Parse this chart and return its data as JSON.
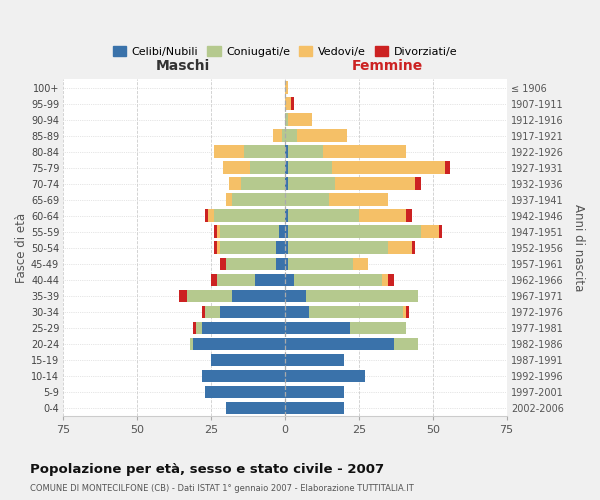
{
  "age_groups": [
    "0-4",
    "5-9",
    "10-14",
    "15-19",
    "20-24",
    "25-29",
    "30-34",
    "35-39",
    "40-44",
    "45-49",
    "50-54",
    "55-59",
    "60-64",
    "65-69",
    "70-74",
    "75-79",
    "80-84",
    "85-89",
    "90-94",
    "95-99",
    "100+"
  ],
  "birth_years": [
    "2002-2006",
    "1997-2001",
    "1992-1996",
    "1987-1991",
    "1982-1986",
    "1977-1981",
    "1972-1976",
    "1967-1971",
    "1962-1966",
    "1957-1961",
    "1952-1956",
    "1947-1951",
    "1942-1946",
    "1937-1941",
    "1932-1936",
    "1927-1931",
    "1922-1926",
    "1917-1921",
    "1912-1916",
    "1907-1911",
    "≤ 1906"
  ],
  "male": {
    "celibi": [
      20,
      27,
      28,
      25,
      31,
      28,
      22,
      18,
      10,
      3,
      3,
      2,
      0,
      0,
      0,
      0,
      0,
      0,
      0,
      0,
      0
    ],
    "coniugati": [
      0,
      0,
      0,
      0,
      1,
      2,
      5,
      15,
      13,
      17,
      19,
      20,
      24,
      18,
      15,
      12,
      14,
      1,
      0,
      0,
      0
    ],
    "vedovi": [
      0,
      0,
      0,
      0,
      0,
      0,
      0,
      0,
      0,
      0,
      1,
      1,
      2,
      2,
      4,
      9,
      10,
      3,
      0,
      0,
      0
    ],
    "divorziati": [
      0,
      0,
      0,
      0,
      0,
      1,
      1,
      3,
      2,
      2,
      1,
      1,
      1,
      0,
      0,
      0,
      0,
      0,
      0,
      0,
      0
    ]
  },
  "female": {
    "nubili": [
      20,
      20,
      27,
      20,
      37,
      22,
      8,
      7,
      3,
      1,
      1,
      1,
      1,
      0,
      1,
      1,
      1,
      0,
      0,
      0,
      0
    ],
    "coniugate": [
      0,
      0,
      0,
      0,
      8,
      19,
      32,
      38,
      30,
      22,
      34,
      45,
      24,
      15,
      16,
      15,
      12,
      4,
      1,
      0,
      0
    ],
    "vedove": [
      0,
      0,
      0,
      0,
      0,
      0,
      1,
      0,
      2,
      5,
      8,
      6,
      16,
      20,
      27,
      38,
      28,
      17,
      8,
      2,
      1
    ],
    "divorziate": [
      0,
      0,
      0,
      0,
      0,
      0,
      1,
      0,
      2,
      0,
      1,
      1,
      2,
      0,
      2,
      2,
      0,
      0,
      0,
      1,
      0
    ]
  },
  "colors": {
    "celibi": "#3a72aa",
    "coniugati": "#b5c98e",
    "vedovi": "#f5c067",
    "divorziati": "#cc2222"
  },
  "title": "Popolazione per età, sesso e stato civile - 2007",
  "subtitle": "COMUNE DI MONTECILFONE (CB) - Dati ISTAT 1° gennaio 2007 - Elaborazione TUTTITALIA.IT",
  "xlabel_left": "Maschi",
  "xlabel_right": "Femmine",
  "ylabel_left": "Fasce di età",
  "ylabel_right": "Anni di nascita",
  "xlim": 75,
  "bg_color": "#f0f0f0",
  "plot_bg": "#ffffff",
  "legend_labels": [
    "Celibi/Nubili",
    "Coniugati/e",
    "Vedovi/e",
    "Divorziati/e"
  ]
}
